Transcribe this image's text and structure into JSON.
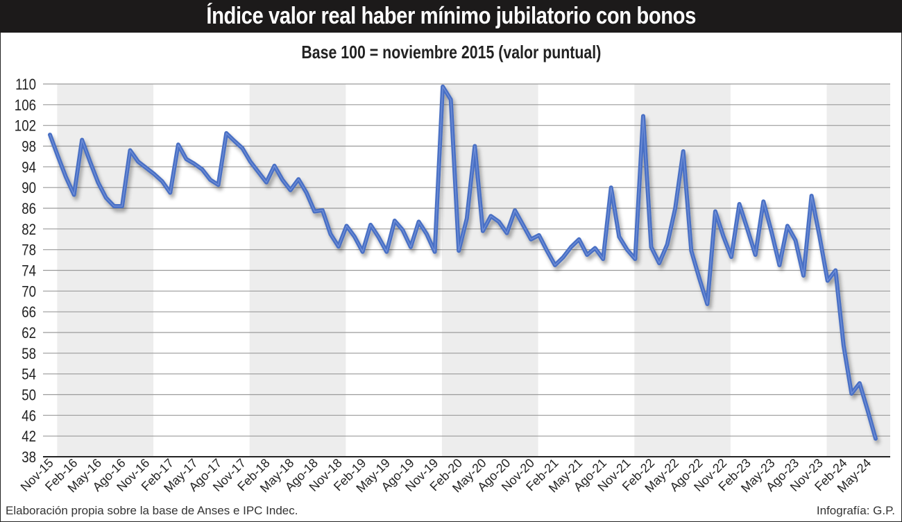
{
  "header": {
    "title": "Índice valor real haber mínimo jubilatorio con bonos",
    "subtitle": "Base 100 = noviembre 2015 (valor puntual)"
  },
  "footer": {
    "source": "Elaboración propia sobre la base de Anses e IPC Indec.",
    "credit": "Infografía: G.P."
  },
  "colors": {
    "line": "#4a6fc4",
    "title_bg": "#1c1a1a",
    "band": "#ededed",
    "grid": "#9a9a9a"
  },
  "chart_data": {
    "type": "line",
    "title": "Índice valor real haber mínimo jubilatorio con bonos",
    "subtitle": "Base 100 = noviembre 2015 (valor puntual)",
    "xlabel": "",
    "ylabel": "",
    "ylim": [
      38,
      110
    ],
    "yticks": [
      110,
      106,
      102,
      98,
      94,
      90,
      86,
      82,
      78,
      74,
      70,
      66,
      62,
      58,
      54,
      50,
      46,
      42,
      38
    ],
    "grid": true,
    "legend": null,
    "xtick_labels": [
      "Nov-15",
      "Feb-16",
      "May-16",
      "Ago-16",
      "Nov-16",
      "Feb-17",
      "May-17",
      "Ago-17",
      "Nov-17",
      "Feb-18",
      "May-18",
      "Ago-18",
      "Nov-18",
      "Feb-19",
      "May-19",
      "Ago-19",
      "Nov-19",
      "Feb-20",
      "May-20",
      "Ago-20",
      "Nov-20",
      "Feb-21",
      "May-21",
      "Ago-21",
      "Nov-21",
      "Feb-22",
      "May-22",
      "Ago-22",
      "Nov-22",
      "Feb-23",
      "May-23",
      "Ago-23",
      "Nov-23",
      "Feb-24",
      "May-24"
    ],
    "series": [
      {
        "name": "Índice valor real haber mínimo",
        "start": "Nov-15",
        "frequency": "monthly",
        "values": [
          100.2,
          96.0,
          92.0,
          88.6,
          99.2,
          95.0,
          91.0,
          88.0,
          86.4,
          86.4,
          97.2,
          95.0,
          93.8,
          92.6,
          91.2,
          89.0,
          98.3,
          95.5,
          94.6,
          93.5,
          91.5,
          90.5,
          100.5,
          99.0,
          97.6,
          95.0,
          93.0,
          91.0,
          94.2,
          91.5,
          89.5,
          91.6,
          89.0,
          85.4,
          85.6,
          81.0,
          78.6,
          82.6,
          80.5,
          77.6,
          82.8,
          80.4,
          77.6,
          83.6,
          81.8,
          78.5,
          83.4,
          81.0,
          77.6,
          109.5,
          107.0,
          77.8,
          84.0,
          98.0,
          81.6,
          84.5,
          83.4,
          81.2,
          85.6,
          82.8,
          80.0,
          80.8,
          77.8,
          75.0,
          76.5,
          78.5,
          80.0,
          77.0,
          78.3,
          76.2,
          90.0,
          80.5,
          78.0,
          76.2,
          103.8,
          78.5,
          75.4,
          79.0,
          86.0,
          97.0,
          77.8,
          72.5,
          67.5,
          85.4,
          80.6,
          76.6,
          86.8,
          82.0,
          77.0,
          87.3,
          81.5,
          75.0,
          82.6,
          79.8,
          73.0,
          88.4,
          80.6,
          72.0,
          74.0,
          59.5,
          50.2,
          52.2,
          47.0,
          41.5
        ]
      }
    ]
  }
}
